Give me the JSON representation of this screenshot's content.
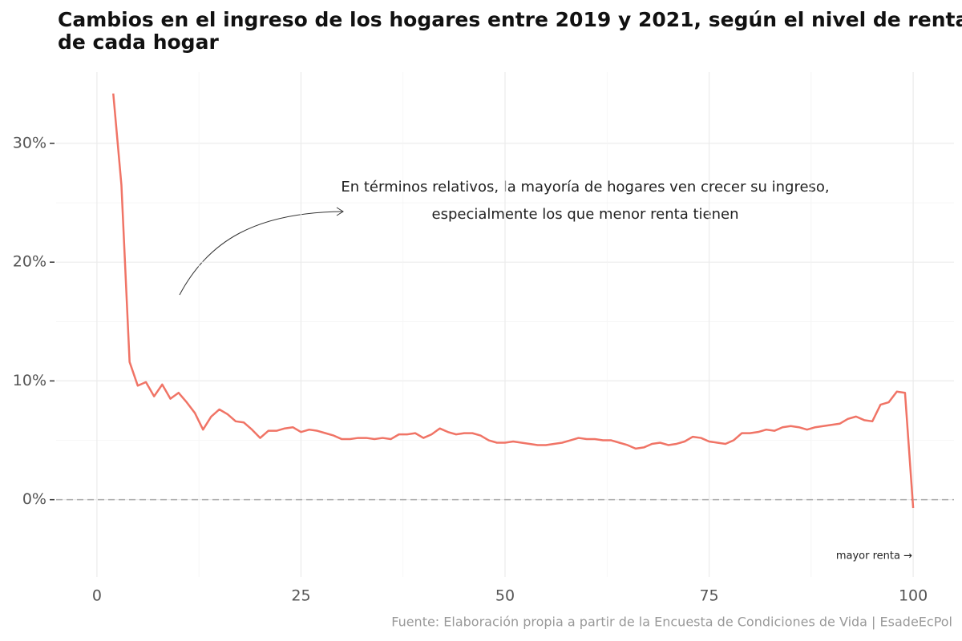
{
  "chart_data": {
    "type": "line",
    "title_lines": [
      "Cambios en el ingreso de los hogares entre 2019 y 2021, según el nivel de renta",
      "de cada hogar"
    ],
    "annotation_lines": [
      "En términos relativos, la mayoría de hogares ven crecer su ingreso,",
      "especialmente los que menor renta tienen"
    ],
    "x_note": "mayor renta →",
    "source": "Fuente: Elaboración propia a partir de la Encuesta de Condiciones de Vida | EsadeEcPol",
    "x": [
      2,
      3,
      4,
      5,
      6,
      7,
      8,
      9,
      10,
      11,
      12,
      13,
      14,
      15,
      16,
      17,
      18,
      19,
      20,
      21,
      22,
      23,
      24,
      25,
      26,
      27,
      28,
      29,
      30,
      31,
      32,
      33,
      34,
      35,
      36,
      37,
      38,
      39,
      40,
      41,
      42,
      43,
      44,
      45,
      46,
      47,
      48,
      49,
      50,
      51,
      52,
      53,
      54,
      55,
      56,
      57,
      58,
      59,
      60,
      61,
      62,
      63,
      64,
      65,
      66,
      67,
      68,
      69,
      70,
      71,
      72,
      73,
      74,
      75,
      76,
      77,
      78,
      79,
      80,
      81,
      82,
      83,
      84,
      85,
      86,
      87,
      88,
      89,
      90,
      91,
      92,
      93,
      94,
      95,
      96,
      97,
      98,
      99,
      100
    ],
    "series": [
      {
        "color": "#f07466",
        "values": [
          34.2,
          26.5,
          11.6,
          9.6,
          9.9,
          8.7,
          9.7,
          8.5,
          9.0,
          8.2,
          7.3,
          5.9,
          7.0,
          7.6,
          7.2,
          6.6,
          6.5,
          5.9,
          5.2,
          5.8,
          5.8,
          6.0,
          6.1,
          5.7,
          5.9,
          5.8,
          5.6,
          5.4,
          5.1,
          5.1,
          5.2,
          5.2,
          5.1,
          5.2,
          5.1,
          5.5,
          5.5,
          5.6,
          5.2,
          5.5,
          6.0,
          5.7,
          5.5,
          5.6,
          5.6,
          5.4,
          5.0,
          4.8,
          4.8,
          4.9,
          4.8,
          4.7,
          4.6,
          4.6,
          4.7,
          4.8,
          5.0,
          5.2,
          5.1,
          5.1,
          5.0,
          5.0,
          4.8,
          4.6,
          4.3,
          4.4,
          4.7,
          4.8,
          4.6,
          4.7,
          4.9,
          5.3,
          5.2,
          4.9,
          4.8,
          4.7,
          5.0,
          5.6,
          5.6,
          5.7,
          5.9,
          5.8,
          6.1,
          6.2,
          6.1,
          5.9,
          6.1,
          6.2,
          6.3,
          6.4,
          6.8,
          7.0,
          6.7,
          6.6,
          8.0,
          8.2,
          9.1,
          9.0,
          -0.7
        ]
      }
    ],
    "xlim": [
      -5,
      105
    ],
    "xticks": [
      0,
      25,
      50,
      75,
      100
    ],
    "ylim": [
      -6.5,
      36
    ],
    "yticks": [
      {
        "value": 0,
        "label": "0%"
      },
      {
        "value": 10,
        "label": "10%"
      },
      {
        "value": 20,
        "label": "20%"
      },
      {
        "value": 30,
        "label": "30%"
      }
    ],
    "reference_line": 0,
    "grid": true
  }
}
